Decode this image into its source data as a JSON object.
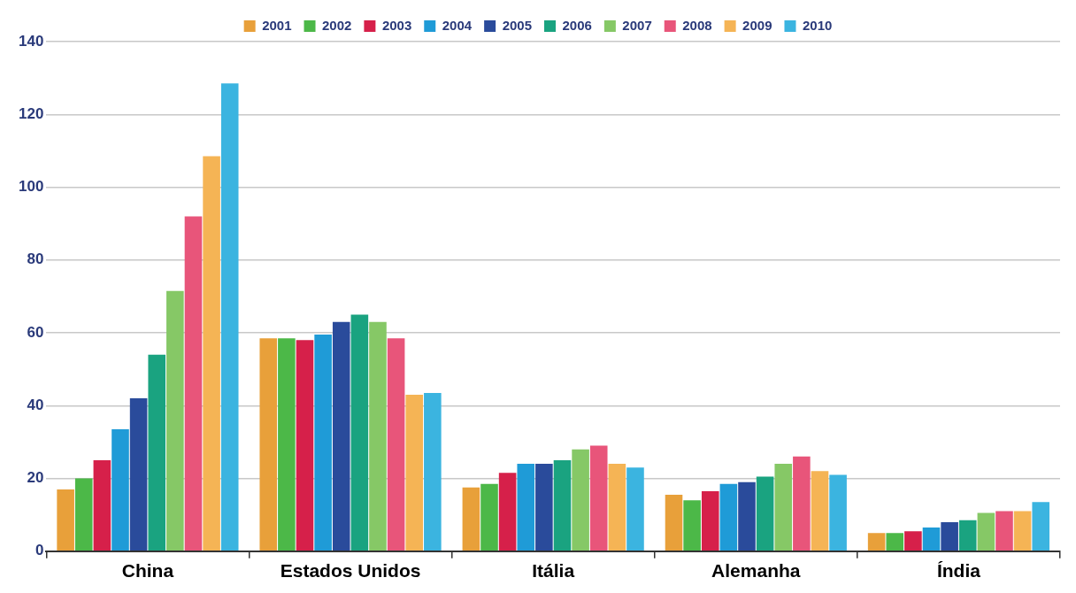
{
  "chart_data": {
    "type": "bar",
    "categories": [
      "China",
      "Estados Unidos",
      "Itália",
      "Alemanha",
      "Índia"
    ],
    "series": [
      {
        "name": "2001",
        "color": "#e8a03a",
        "values": [
          17,
          58.5,
          17.5,
          15.5,
          5
        ]
      },
      {
        "name": "2002",
        "color": "#4cb848",
        "values": [
          20,
          58.5,
          18.5,
          14,
          5
        ]
      },
      {
        "name": "2003",
        "color": "#d6204a",
        "values": [
          25,
          58,
          21.5,
          16.5,
          5.5
        ]
      },
      {
        "name": "2004",
        "color": "#1f9bd7",
        "values": [
          33.5,
          59.5,
          24,
          18.5,
          6.5
        ]
      },
      {
        "name": "2005",
        "color": "#2a4b9b",
        "values": [
          42,
          63,
          24,
          19,
          8
        ]
      },
      {
        "name": "2006",
        "color": "#1aa380",
        "values": [
          54,
          65,
          25,
          20.5,
          8.5
        ]
      },
      {
        "name": "2007",
        "color": "#86c866",
        "values": [
          71.5,
          63,
          28,
          24,
          10.5
        ]
      },
      {
        "name": "2008",
        "color": "#e8557a",
        "values": [
          92,
          58.5,
          29,
          26,
          11
        ]
      },
      {
        "name": "2009",
        "color": "#f5b455",
        "values": [
          108.5,
          43,
          24,
          22,
          11
        ]
      },
      {
        "name": "2010",
        "color": "#3bb4e0",
        "values": [
          128.5,
          43.5,
          23,
          21,
          13.5
        ]
      }
    ],
    "ylim": [
      0,
      140
    ],
    "yticks": [
      0,
      20,
      40,
      60,
      80,
      100,
      120,
      140
    ],
    "grid": "y",
    "legend": "top"
  }
}
